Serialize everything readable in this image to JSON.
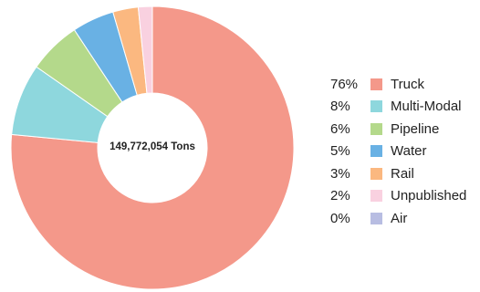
{
  "chart_data": {
    "type": "pie",
    "center_label": "149,772,054 Tons",
    "slices": [
      {
        "name": "Truck",
        "percent_label": "76%",
        "value": 76.5,
        "color": "#f4988a"
      },
      {
        "name": "Multi-Modal",
        "percent_label": "8%",
        "value": 8.2,
        "color": "#8ed7dd"
      },
      {
        "name": "Pipeline",
        "percent_label": "6%",
        "value": 6.0,
        "color": "#b4d98b"
      },
      {
        "name": "Water",
        "percent_label": "5%",
        "value": 4.8,
        "color": "#69b1e4"
      },
      {
        "name": "Rail",
        "percent_label": "3%",
        "value": 2.9,
        "color": "#fbb880"
      },
      {
        "name": "Unpublished",
        "percent_label": "2%",
        "value": 1.6,
        "color": "#f9d1e0"
      },
      {
        "name": "Air",
        "percent_label": "0%",
        "value": 0.0,
        "color": "#b8bde2"
      }
    ],
    "legend_position": "right"
  }
}
